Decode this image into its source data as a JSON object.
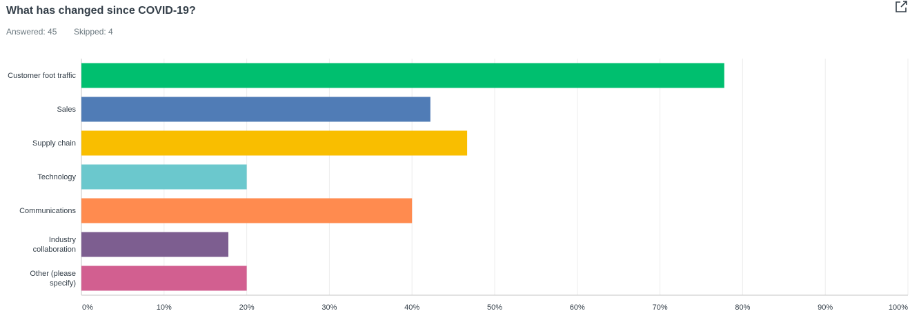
{
  "header": {
    "answered": "Answered: 45",
    "skipped": "Skipped: 4"
  },
  "chart_data": {
    "type": "bar",
    "orientation": "horizontal",
    "title": "What has changed since COVID-19?",
    "categories": [
      "Customer foot traffic",
      "Sales",
      "Supply chain",
      "Technology",
      "Communications",
      "Industry collaboration",
      "Other (please specify)"
    ],
    "values": [
      77.78,
      42.22,
      46.67,
      20,
      40,
      17.78,
      20
    ],
    "colors": [
      "#00bf6f",
      "#507cb6",
      "#f9be00",
      "#6bc8cd",
      "#ff8b4f",
      "#7d5e90",
      "#d25f90"
    ],
    "xlim": [
      0,
      100
    ],
    "xticks": [
      {
        "value": 0,
        "label": "0%"
      },
      {
        "value": 10,
        "label": "10%"
      },
      {
        "value": 20,
        "label": "20%"
      },
      {
        "value": 30,
        "label": "30%"
      },
      {
        "value": 40,
        "label": "40%"
      },
      {
        "value": 50,
        "label": "50%"
      },
      {
        "value": 60,
        "label": "60%"
      },
      {
        "value": 70,
        "label": "70%"
      },
      {
        "value": 80,
        "label": "80%"
      },
      {
        "value": 90,
        "label": "90%"
      },
      {
        "value": 100,
        "label": "100%"
      }
    ],
    "grid": true
  }
}
